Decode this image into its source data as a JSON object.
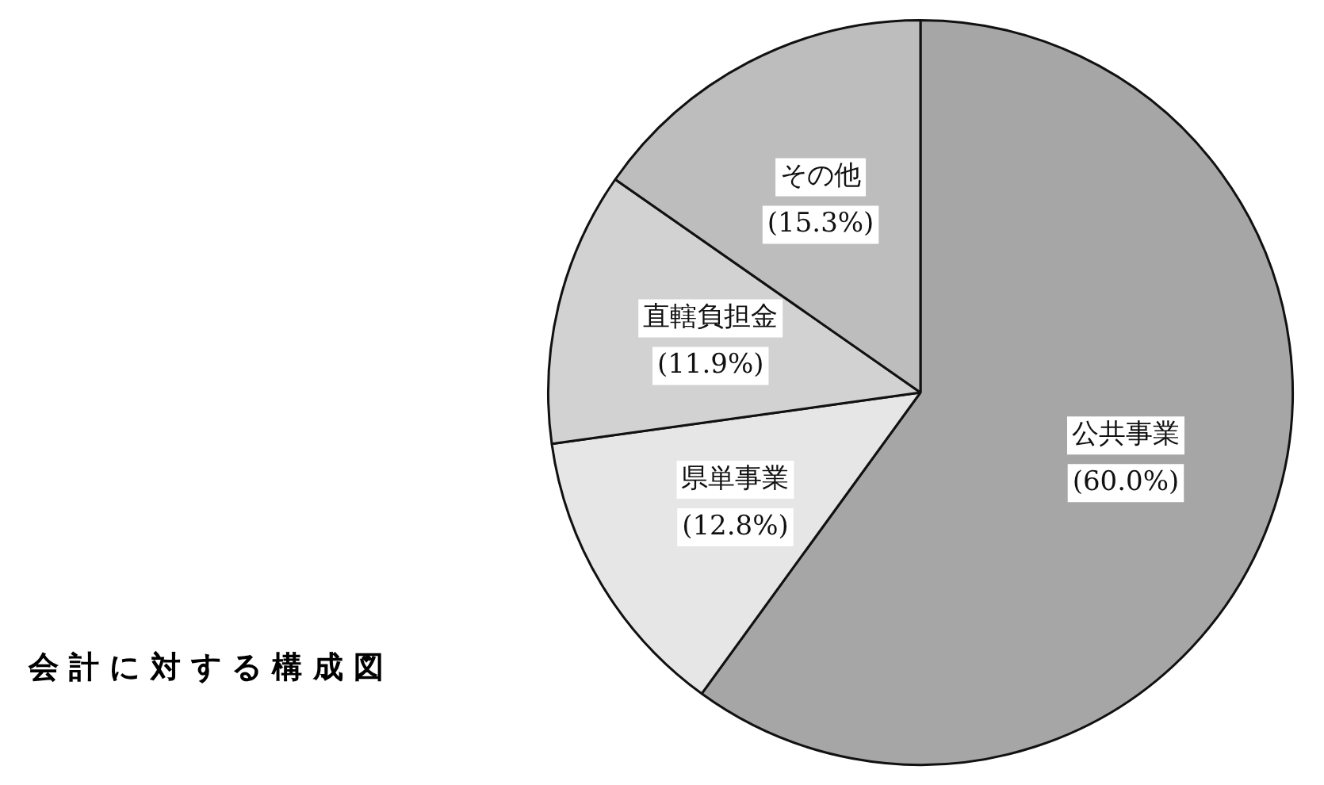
{
  "chart_data": {
    "type": "pie",
    "categories": [
      "公共事業",
      "県単事業",
      "直轄負担金",
      "その他"
    ],
    "values": [
      60.0,
      12.8,
      11.9,
      15.3
    ],
    "value_labels": [
      "(60.0%)",
      "(12.8%)",
      "(11.9%)",
      "(15.3%)"
    ],
    "colors": [
      "#a6a6a6",
      "#e6e6e6",
      "#d2d2d2",
      "#bdbdbd"
    ],
    "annotations": [
      "会 計 に 対 す る 構 成 図"
    ],
    "legend": false
  }
}
